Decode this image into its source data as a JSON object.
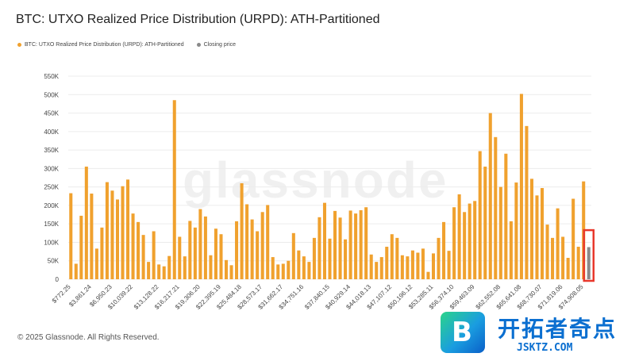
{
  "title": "BTC: UTXO Realized Price Distribution (URPD): ATH-Partitioned",
  "legend": [
    {
      "label": "BTC: UTXO Realized Price Distribution (URPD): ATH-Partitioned",
      "color": "#f0a12e"
    },
    {
      "label": "Closing price",
      "color": "#8a8a8a"
    }
  ],
  "watermark": "glassnode",
  "footer": "© 2025 Glassnode. All Rights Reserved.",
  "brand": {
    "name": "开拓者奇点",
    "url": "JSKTZ.COM",
    "logo_letter": "B"
  },
  "highlight_color": "#e8382c",
  "chart_data": {
    "type": "bar",
    "ylim": [
      0,
      550000
    ],
    "y_ticks": [
      0,
      50000,
      100000,
      150000,
      200000,
      250000,
      300000,
      350000,
      400000,
      450000,
      500000,
      550000
    ],
    "y_tick_labels": [
      "0",
      "50K",
      "100K",
      "150K",
      "200K",
      "250K",
      "300K",
      "350K",
      "400K",
      "450K",
      "500K",
      "550K"
    ],
    "x_tick_labels": [
      "$772.25",
      "$3,861.24",
      "$6,950.23",
      "$10,039.22",
      "$13,128.22",
      "$16,217.21",
      "$19,306.20",
      "$22,395.19",
      "$25,484.18",
      "$28,573.17",
      "$31,662.17",
      "$34,751.16",
      "$37,840.15",
      "$40,929.14",
      "$44,018.13",
      "$47,107.12",
      "$50,196.12",
      "$53,285.11",
      "$56,374.10",
      "$59,463.09",
      "$62,552.08",
      "$65,641.08",
      "$68,730.07",
      "$71,819.06",
      "$74,908.05"
    ],
    "series": [
      {
        "name": "BTC: UTXO Realized Price Distribution (URPD): ATH-Partitioned",
        "color": "#f0a12e",
        "values": [
          233000,
          42000,
          172000,
          305000,
          232000,
          83000,
          140000,
          263000,
          240000,
          216000,
          252000,
          270000,
          178000,
          155000,
          120000,
          47000,
          130000,
          40000,
          35000,
          63000,
          485000,
          115000,
          62000,
          158000,
          140000,
          190000,
          170000,
          65000,
          137000,
          122000,
          52000,
          38000,
          157000,
          260000,
          203000,
          162000,
          130000,
          182000,
          201000,
          60000,
          40000,
          42000,
          50000,
          125000,
          78000,
          62000,
          47000,
          112000,
          168000,
          207000,
          110000,
          185000,
          167000,
          108000,
          186000,
          178000,
          187000,
          195000,
          67000,
          47000,
          60000,
          88000,
          122000,
          112000,
          65000,
          62000,
          78000,
          72000,
          83000,
          20000,
          70000,
          112000,
          155000,
          77000,
          195000,
          230000,
          182000,
          205000,
          212000,
          347000,
          305000,
          450000,
          385000,
          250000,
          340000,
          157000,
          262000,
          502000,
          415000,
          272000,
          227000,
          247000,
          148000,
          112000,
          192000,
          115000,
          58000,
          218000,
          88000,
          265000
        ]
      },
      {
        "name": "Closing price",
        "color": "#8a8a8a",
        "values": [
          87000
        ]
      }
    ]
  }
}
